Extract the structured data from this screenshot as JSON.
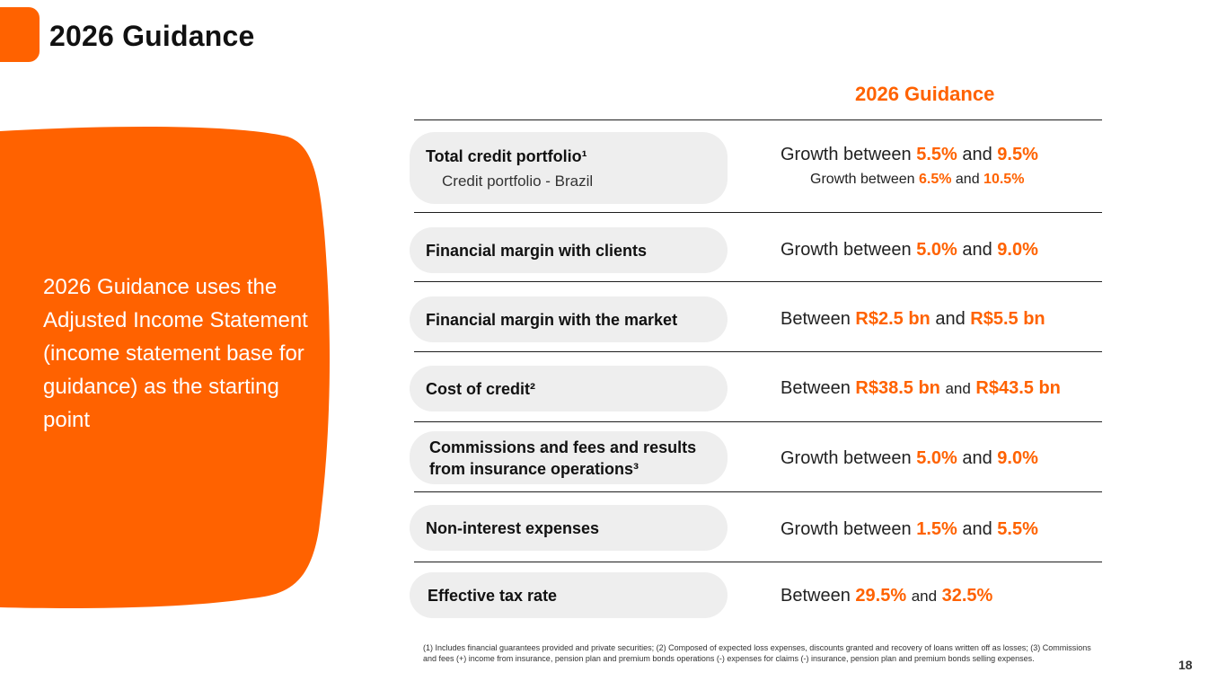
{
  "header": {
    "title": "2026 Guidance"
  },
  "sidebar": {
    "text": "2026 Guidance uses the Adjusted Income Statement (income statement base for guidance) as the starting point"
  },
  "table": {
    "column_header": "2026 Guidance",
    "rows": [
      {
        "label": "Total credit portfolio¹",
        "sublabel": "Credit portfolio - Brazil",
        "value": {
          "prefix": "Growth between",
          "low": "5.5%",
          "joiner": "and",
          "high": "9.5%"
        },
        "sub_value": {
          "prefix": "Growth between",
          "low": "6.5%",
          "joiner": "and",
          "high": "10.5%"
        }
      },
      {
        "label": "Financial margin with clients",
        "value": {
          "prefix": "Growth between",
          "low": "5.0%",
          "joiner": "and",
          "high": "9.0%"
        }
      },
      {
        "label": "Financial margin with the market",
        "value": {
          "prefix": "Between",
          "low": "R$2.5 bn",
          "joiner": "and",
          "high": "R$5.5 bn"
        }
      },
      {
        "label": "Cost of credit²",
        "value": {
          "prefix": "Between",
          "low": "R$38.5 bn",
          "joiner": "and",
          "high": "R$43.5 bn"
        }
      },
      {
        "label": "Commissions and fees and results from insurance operations³",
        "value": {
          "prefix": "Growth between",
          "low": "5.0%",
          "joiner": "and",
          "high": "9.0%"
        }
      },
      {
        "label": "Non-interest expenses",
        "value": {
          "prefix": "Growth between",
          "low": "1.5%",
          "joiner": "and",
          "high": "5.5%"
        }
      },
      {
        "label": "Effective tax rate",
        "value": {
          "prefix": "Between",
          "low": "29.5%",
          "joiner": "and",
          "high": "32.5%"
        }
      }
    ]
  },
  "footnote": "(1) Includes financial guarantees provided and private securities; (2) Composed of expected loss expenses, discounts granted and recovery of loans written off as losses; (3) Commissions and fees (+) income from insurance, pension plan and premium bonds operations (-) expenses for claims (-) insurance, pension plan and premium bonds selling expenses.",
  "page_number": "18",
  "colors": {
    "accent": "#ff6200",
    "pill": "#eeeeee",
    "text": "#1e1e1e"
  }
}
